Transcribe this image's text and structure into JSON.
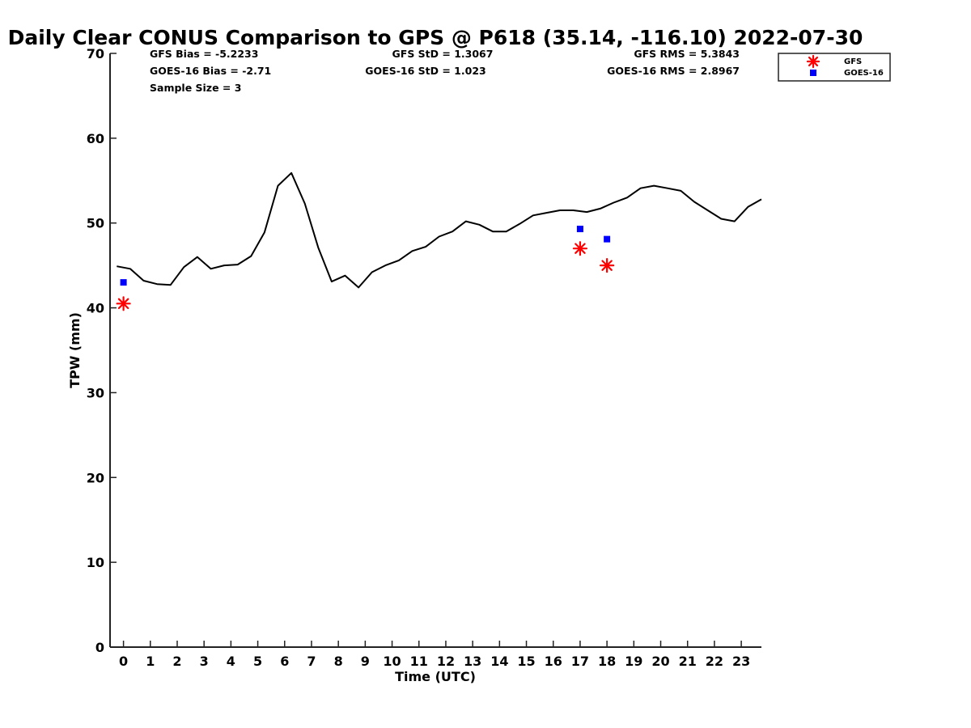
{
  "chart_data": {
    "type": "line",
    "title": "Daily Clear CONUS Comparison to GPS @ P618 (35.14, -116.10) 2022-07-30",
    "xlabel": "Time (UTC)",
    "ylabel": "TPW (mm)",
    "xlim": [
      -0.5,
      23.75
    ],
    "ylim": [
      0,
      70
    ],
    "xticks": [
      "0",
      "1",
      "2",
      "3",
      "4",
      "5",
      "6",
      "7",
      "8",
      "9",
      "10",
      "11",
      "12",
      "13",
      "14",
      "15",
      "16",
      "17",
      "18",
      "19",
      "20",
      "21",
      "22",
      "23"
    ],
    "yticks": [
      "0",
      "10",
      "20",
      "30",
      "40",
      "50",
      "60",
      "70"
    ],
    "grid": false,
    "legend_position": "top-right",
    "stats": {
      "gfs_bias": "GFS Bias = -5.2233",
      "goes_bias": "GOES-16 Bias = -2.71",
      "sample_size": "Sample Size = 3",
      "gfs_std": "GFS StD = 1.3067",
      "goes_std": "GOES-16 StD = 1.023",
      "gfs_rms": "GFS RMS = 5.3843",
      "goes_rms": "GOES-16 RMS = 2.8967"
    },
    "gps_series": {
      "color": "#000000",
      "x": [
        -0.25,
        0.25,
        0.75,
        1.25,
        1.75,
        2.25,
        2.75,
        3.25,
        3.75,
        4.25,
        4.75,
        5.25,
        5.75,
        6.25,
        6.75,
        7.25,
        7.75,
        8.25,
        8.75,
        9.25,
        9.75,
        10.25,
        10.75,
        11.25,
        11.75,
        12.25,
        12.75,
        13.25,
        13.75,
        14.25,
        14.75,
        15.25,
        15.75,
        16.25,
        16.75,
        17.25,
        17.75,
        18.25,
        18.75,
        19.25,
        19.75,
        20.25,
        20.75,
        21.25,
        21.75,
        22.25,
        22.75,
        23.25,
        23.75
      ],
      "y": [
        44.9,
        44.6,
        43.2,
        42.8,
        42.7,
        44.8,
        46.0,
        44.6,
        45.0,
        45.1,
        46.1,
        48.9,
        54.4,
        55.9,
        52.3,
        47.1,
        43.1,
        43.8,
        42.4,
        44.2,
        45.0,
        45.6,
        46.7,
        47.2,
        48.4,
        49.0,
        50.2,
        49.8,
        49.0,
        49.0,
        49.9,
        50.9,
        51.2,
        51.5,
        51.5,
        51.3,
        51.7,
        52.4,
        53.0,
        54.1,
        54.4,
        54.1,
        53.8,
        52.5,
        51.5,
        50.5,
        50.2,
        51.9,
        52.8
      ]
    },
    "series": [
      {
        "name": "GFS",
        "marker": "asterisk",
        "color": "#ff0000",
        "x": [
          0,
          17,
          18
        ],
        "y": [
          40.5,
          47.0,
          45.0
        ]
      },
      {
        "name": "GOES-16",
        "marker": "square",
        "color": "#0000ff",
        "x": [
          0,
          17,
          18
        ],
        "y": [
          43.0,
          49.3,
          48.1
        ]
      }
    ]
  }
}
